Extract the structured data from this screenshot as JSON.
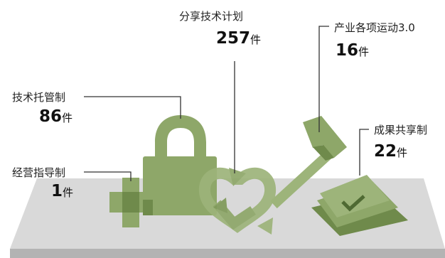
{
  "items": [
    {
      "label": "分享技术计划",
      "count": "257",
      "unit": "件"
    },
    {
      "label": "产业各项运动3.0",
      "count": "16",
      "unit": "件"
    },
    {
      "label": "技术托管制",
      "count": "86",
      "unit": "件"
    },
    {
      "label": "成果共享制",
      "count": "22",
      "unit": "件"
    },
    {
      "label": "经营指导制",
      "count": "1",
      "unit": "件"
    }
  ],
  "colors": {
    "platform_top": "#d8d8d8",
    "platform_front": "#b2b2b2",
    "icon_green": "#8ea769",
    "icon_green_light": "#9db47a",
    "icon_green_dark": "#6f8a4b",
    "leader_line": "#333333"
  },
  "icons": [
    "cross-icon",
    "padlock-icon",
    "recycle-heart-icon",
    "hammer-icon",
    "money-stack-icon"
  ]
}
